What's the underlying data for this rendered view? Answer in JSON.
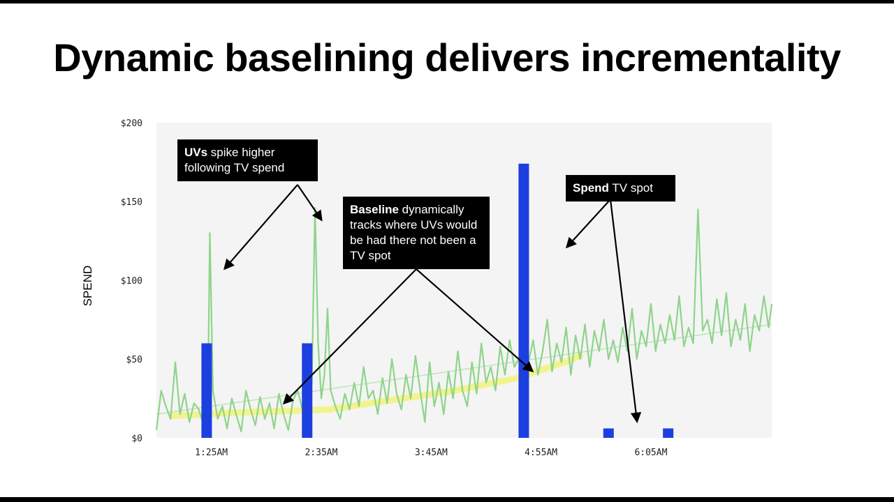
{
  "title": "Dynamic baselining delivers incrementality",
  "callouts": {
    "uvs": {
      "bold": "UVs",
      "text": " spike higher following TV spend"
    },
    "baseline": {
      "bold": "Baseline",
      "text": " dynamically tracks where UVs would be had there not been a TV spot"
    },
    "spend": {
      "bold": "Spend",
      "text": " TV spot"
    }
  },
  "colors": {
    "spend_bar": "#1c3fdf",
    "uv_line": "#8fd48a",
    "baseline": "#f2f27a",
    "plot_bg": "#f4f4f4"
  },
  "chart_data": {
    "type": "line",
    "xlabel": "",
    "ylabel": "SPEND",
    "ylim": [
      0,
      200
    ],
    "yticks": [
      "$0",
      "$50",
      "$100",
      "$150",
      "$200"
    ],
    "ytick_values": [
      0,
      50,
      100,
      150,
      200
    ],
    "x_minutes_range": [
      50,
      442
    ],
    "xticks": [
      {
        "label": "1:25AM",
        "minute": 85
      },
      {
        "label": "2:35AM",
        "minute": 155
      },
      {
        "label": "3:45AM",
        "minute": 225
      },
      {
        "label": "4:55AM",
        "minute": 295
      },
      {
        "label": "6:05AM",
        "minute": 365
      }
    ],
    "series": [
      {
        "kind": "bar",
        "values": [
          {
            "minute": 82,
            "value": 60
          },
          {
            "minute": 146,
            "value": 60
          },
          {
            "minute": 284,
            "value": 174
          },
          {
            "minute": 338,
            "value": 6
          },
          {
            "minute": 376,
            "value": 6
          }
        ]
      },
      {
        "kind": "line",
        "values": [
          [
            50,
            5
          ],
          [
            53,
            30
          ],
          [
            56,
            20
          ],
          [
            59,
            12
          ],
          [
            62,
            48
          ],
          [
            65,
            15
          ],
          [
            68,
            28
          ],
          [
            71,
            10
          ],
          [
            74,
            22
          ],
          [
            77,
            18
          ],
          [
            80,
            8
          ],
          [
            83,
            45
          ],
          [
            84,
            130
          ],
          [
            86,
            30
          ],
          [
            89,
            12
          ],
          [
            92,
            20
          ],
          [
            95,
            6
          ],
          [
            98,
            25
          ],
          [
            101,
            14
          ],
          [
            104,
            4
          ],
          [
            107,
            30
          ],
          [
            110,
            18
          ],
          [
            113,
            8
          ],
          [
            116,
            26
          ],
          [
            119,
            12
          ],
          [
            122,
            22
          ],
          [
            125,
            6
          ],
          [
            128,
            28
          ],
          [
            131,
            15
          ],
          [
            134,
            5
          ],
          [
            137,
            24
          ],
          [
            140,
            30
          ],
          [
            143,
            18
          ],
          [
            146,
            20
          ],
          [
            149,
            35
          ],
          [
            151,
            146
          ],
          [
            153,
            60
          ],
          [
            155,
            25
          ],
          [
            157,
            40
          ],
          [
            159,
            82
          ],
          [
            161,
            30
          ],
          [
            164,
            20
          ],
          [
            167,
            12
          ],
          [
            170,
            28
          ],
          [
            173,
            18
          ],
          [
            176,
            35
          ],
          [
            179,
            20
          ],
          [
            182,
            45
          ],
          [
            185,
            25
          ],
          [
            188,
            30
          ],
          [
            191,
            15
          ],
          [
            194,
            38
          ],
          [
            197,
            22
          ],
          [
            200,
            50
          ],
          [
            203,
            28
          ],
          [
            206,
            18
          ],
          [
            209,
            40
          ],
          [
            212,
            25
          ],
          [
            215,
            52
          ],
          [
            218,
            30
          ],
          [
            221,
            10
          ],
          [
            224,
            48
          ],
          [
            227,
            20
          ],
          [
            230,
            35
          ],
          [
            233,
            15
          ],
          [
            236,
            42
          ],
          [
            239,
            25
          ],
          [
            242,
            55
          ],
          [
            245,
            30
          ],
          [
            248,
            20
          ],
          [
            251,
            48
          ],
          [
            254,
            28
          ],
          [
            257,
            60
          ],
          [
            260,
            35
          ],
          [
            263,
            45
          ],
          [
            266,
            30
          ],
          [
            269,
            58
          ],
          [
            272,
            40
          ],
          [
            275,
            62
          ],
          [
            278,
            45
          ],
          [
            281,
            50
          ],
          [
            284,
            35
          ],
          [
            287,
            48
          ],
          [
            290,
            62
          ],
          [
            293,
            40
          ],
          [
            296,
            55
          ],
          [
            299,
            75
          ],
          [
            302,
            42
          ],
          [
            305,
            60
          ],
          [
            308,
            48
          ],
          [
            311,
            70
          ],
          [
            314,
            40
          ],
          [
            317,
            65
          ],
          [
            320,
            50
          ],
          [
            323,
            72
          ],
          [
            326,
            45
          ],
          [
            329,
            68
          ],
          [
            332,
            55
          ],
          [
            335,
            75
          ],
          [
            338,
            50
          ],
          [
            341,
            62
          ],
          [
            344,
            48
          ],
          [
            347,
            70
          ],
          [
            350,
            55
          ],
          [
            353,
            82
          ],
          [
            356,
            50
          ],
          [
            359,
            68
          ],
          [
            362,
            58
          ],
          [
            365,
            85
          ],
          [
            368,
            55
          ],
          [
            371,
            72
          ],
          [
            374,
            60
          ],
          [
            377,
            78
          ],
          [
            380,
            62
          ],
          [
            383,
            90
          ],
          [
            386,
            58
          ],
          [
            389,
            70
          ],
          [
            392,
            60
          ],
          [
            395,
            145
          ],
          [
            398,
            68
          ],
          [
            401,
            75
          ],
          [
            404,
            60
          ],
          [
            407,
            88
          ],
          [
            410,
            65
          ],
          [
            413,
            92
          ],
          [
            416,
            58
          ],
          [
            419,
            75
          ],
          [
            422,
            62
          ],
          [
            425,
            85
          ],
          [
            428,
            55
          ],
          [
            431,
            78
          ],
          [
            434,
            68
          ],
          [
            437,
            90
          ],
          [
            440,
            70
          ],
          [
            442,
            85
          ]
        ]
      },
      {
        "kind": "band",
        "values": [
          [
            60,
            14
          ],
          [
            100,
            16
          ],
          [
            160,
            18
          ],
          [
            200,
            24
          ],
          [
            240,
            30
          ],
          [
            280,
            38
          ],
          [
            310,
            48
          ],
          [
            320,
            52
          ]
        ]
      }
    ]
  }
}
